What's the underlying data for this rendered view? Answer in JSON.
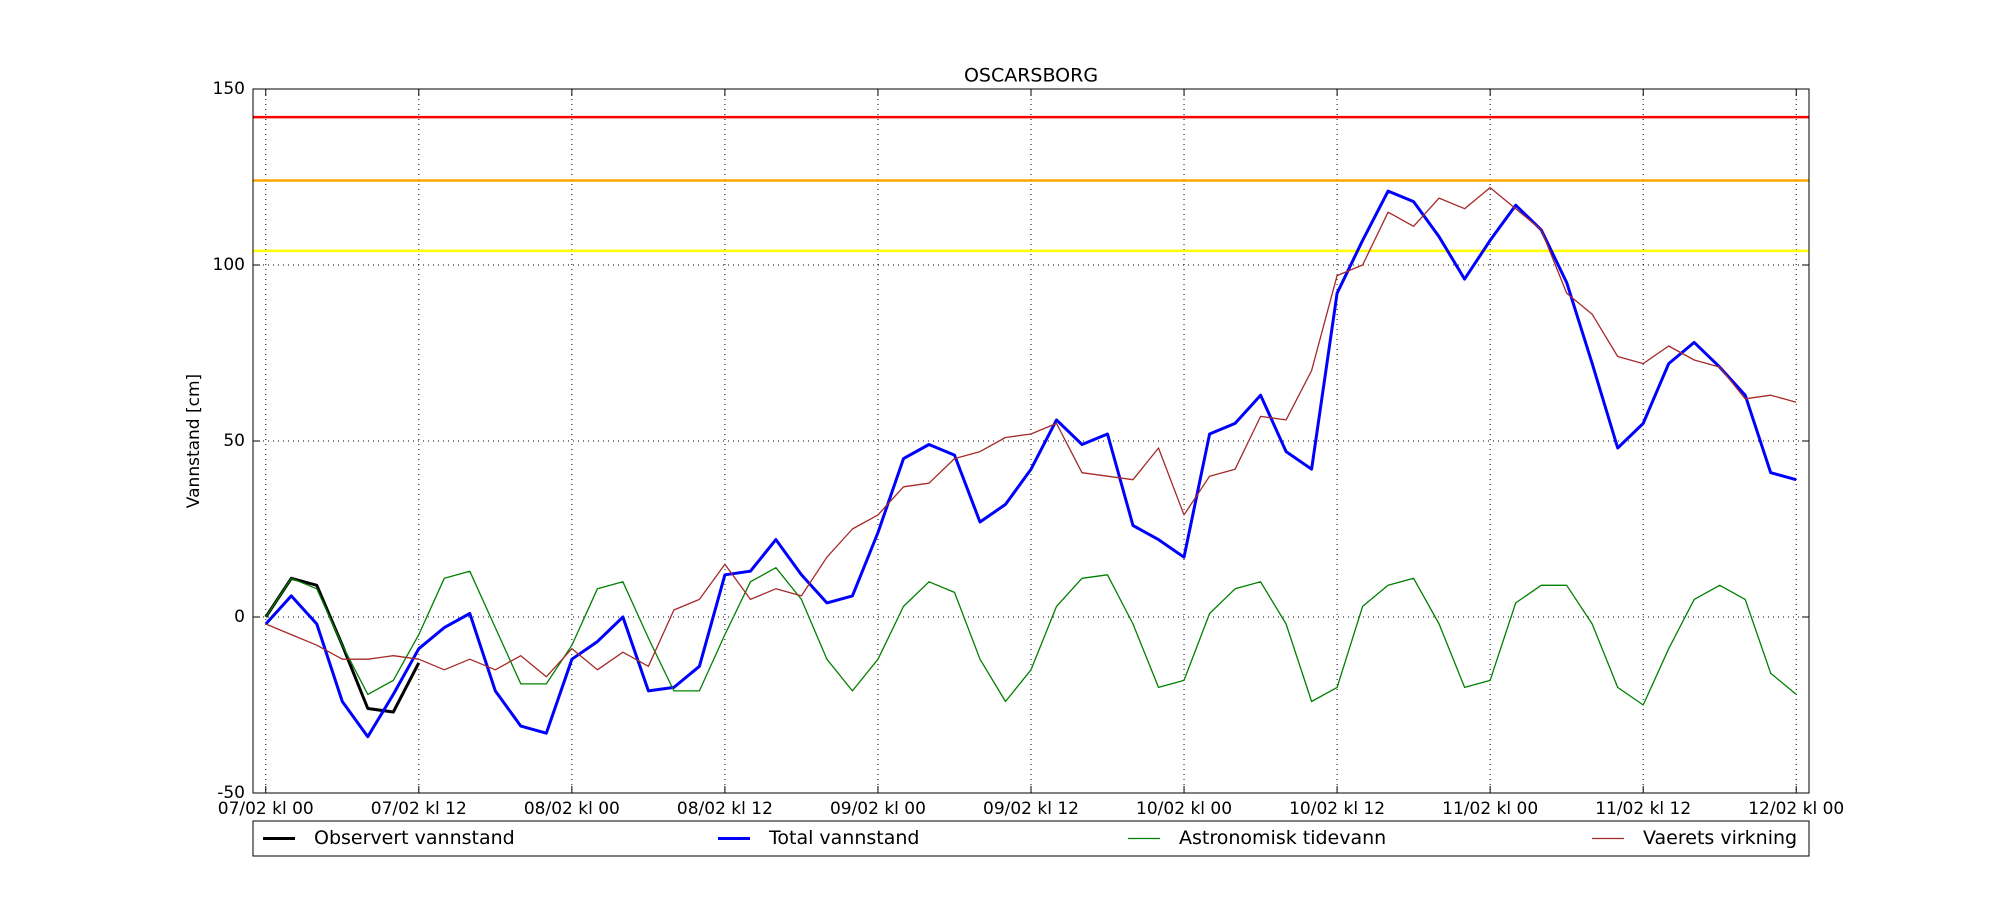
{
  "chart_data": {
    "type": "line",
    "title": "OSCARSBORG",
    "y_label": "Vannstand [cm]",
    "x": [
      0,
      2,
      4,
      6,
      8,
      10,
      12,
      14,
      16,
      18,
      20,
      22,
      24,
      26,
      28,
      30,
      32,
      34,
      36,
      38,
      40,
      42,
      44,
      46,
      48,
      50,
      52,
      54,
      56,
      58,
      60,
      62,
      64,
      66,
      68,
      70,
      72,
      74,
      76,
      78,
      80,
      82,
      84,
      86,
      88,
      90,
      92,
      94,
      96,
      98,
      100,
      102,
      104,
      106,
      108,
      110,
      112,
      114,
      116,
      118,
      120
    ],
    "series": [
      {
        "name": "Observert vannstand",
        "color": "#000000",
        "width": 3,
        "values": [
          0,
          11,
          9,
          -8,
          -26,
          -27,
          -13,
          null,
          null,
          null,
          null,
          null,
          null,
          null,
          null,
          null,
          null,
          null,
          null,
          null,
          null,
          null,
          null,
          null,
          null,
          null,
          null,
          null,
          null,
          null,
          null,
          null,
          null,
          null,
          null,
          null,
          null,
          null,
          null,
          null,
          null,
          null,
          null,
          null,
          null,
          null,
          null,
          null,
          null,
          null,
          null,
          null,
          null,
          null,
          null,
          null,
          null,
          null,
          null,
          null,
          null
        ]
      },
      {
        "name": "Total vannstand",
        "color": "#0000ff",
        "width": 3,
        "values": [
          -2,
          6,
          -2,
          -24,
          -34,
          -22,
          -9,
          -3,
          1,
          -21,
          -31,
          -33,
          -12,
          -7,
          0,
          -21,
          -20,
          -14,
          12,
          13,
          22,
          12,
          4,
          6,
          24,
          45,
          49,
          46,
          27,
          32,
          42,
          56,
          49,
          52,
          26,
          22,
          17,
          52,
          55,
          63,
          47,
          42,
          92,
          107,
          121,
          118,
          108,
          96,
          107,
          117,
          110,
          95,
          72,
          48,
          55,
          72,
          78,
          71,
          63,
          41,
          39
        ]
      },
      {
        "name": "Astronomisk tidevann",
        "color": "#008000",
        "width": 1.3,
        "values": [
          0,
          11,
          8,
          -8,
          -22,
          -18,
          -5,
          11,
          13,
          -3,
          -19,
          -19,
          -8,
          8,
          10,
          -6,
          -21,
          -21,
          -5,
          10,
          14,
          5,
          -12,
          -21,
          -12,
          3,
          10,
          7,
          -12,
          -24,
          -15,
          3,
          11,
          12,
          -2,
          -20,
          -18,
          1,
          8,
          10,
          -2,
          -24,
          -20,
          3,
          9,
          11,
          -2,
          -20,
          -18,
          4,
          9,
          9,
          -2,
          -20,
          -25,
          -9,
          5,
          9,
          5,
          -16,
          -22
        ]
      },
      {
        "name": "Vaerets virkning",
        "color": "#a52a2a",
        "width": 1.3,
        "values": [
          -2,
          -5,
          -8,
          -12,
          -12,
          -11,
          -12,
          -15,
          -12,
          -15,
          -11,
          -17,
          -9,
          -15,
          -10,
          -14,
          2,
          5,
          15,
          5,
          8,
          6,
          17,
          25,
          29,
          37,
          38,
          45,
          47,
          51,
          52,
          55,
          41,
          40,
          39,
          48,
          29,
          40,
          42,
          57,
          56,
          70,
          97,
          100,
          115,
          111,
          119,
          116,
          122,
          116,
          110,
          92,
          86,
          74,
          72,
          77,
          73,
          71,
          62,
          63,
          61
        ]
      }
    ],
    "thresholds": [
      {
        "value": 142,
        "color": "#ff0000"
      },
      {
        "value": 124,
        "color": "#ffa500"
      },
      {
        "value": 104,
        "color": "#ffff00"
      }
    ],
    "xlim": [
      -1,
      121
    ],
    "xticks": [
      {
        "value": 0,
        "label": "07/02 kl 00"
      },
      {
        "value": 12,
        "label": "07/02 kl 12"
      },
      {
        "value": 24,
        "label": "08/02 kl 00"
      },
      {
        "value": 36,
        "label": "08/02 kl 12"
      },
      {
        "value": 48,
        "label": "09/02 kl 00"
      },
      {
        "value": 60,
        "label": "09/02 kl 12"
      },
      {
        "value": 72,
        "label": "10/02 kl 00"
      },
      {
        "value": 84,
        "label": "10/02 kl 12"
      },
      {
        "value": 96,
        "label": "11/02 kl 00"
      },
      {
        "value": 108,
        "label": "11/02 kl 12"
      },
      {
        "value": 120,
        "label": "12/02 kl 00"
      }
    ],
    "ylim": [
      -50,
      150
    ],
    "yticks": [
      -50,
      0,
      50,
      100,
      150
    ],
    "grid": true,
    "legend": "bottom"
  }
}
